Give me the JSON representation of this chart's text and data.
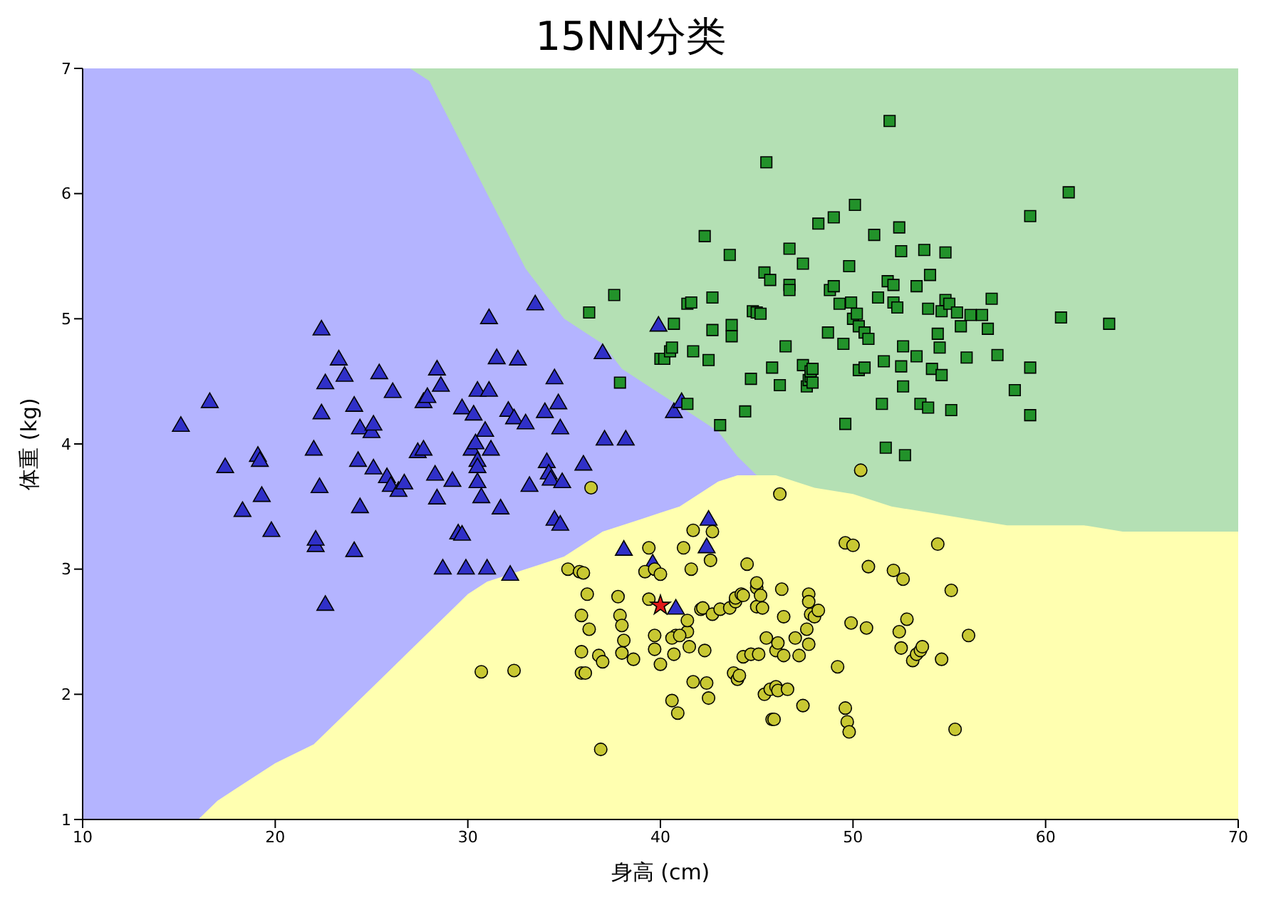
{
  "chart_data": {
    "type": "scatter",
    "title": "15NN分类",
    "xlabel": "身高 (cm)",
    "ylabel": "体重 (kg)",
    "xlim": [
      10,
      70
    ],
    "ylim": [
      1,
      7
    ],
    "xticks": [
      10,
      20,
      30,
      40,
      50,
      60,
      70
    ],
    "yticks": [
      1,
      2,
      3,
      4,
      5,
      6,
      7
    ],
    "x": [
      10,
      12,
      14,
      16,
      17,
      18,
      19,
      20,
      22,
      24,
      26,
      27,
      28,
      29,
      30,
      31,
      32,
      33,
      34,
      35,
      36,
      37,
      38,
      39,
      40,
      41,
      42,
      43,
      44,
      45,
      46,
      48,
      50,
      52,
      54,
      56,
      58,
      60,
      62,
      64,
      66,
      68,
      70
    ],
    "series": [
      {
        "type": "area",
        "color": "#b4e0b4",
        "values": [
          null,
          null,
          null,
          null,
          null,
          null,
          null,
          null,
          null,
          null,
          null,
          7,
          7,
          7,
          7,
          7,
          7,
          7,
          7,
          7,
          7,
          7,
          7,
          7,
          7,
          7,
          7,
          7,
          7,
          7,
          7,
          7,
          7,
          7,
          7,
          7,
          7,
          7,
          7,
          7,
          7,
          7,
          7
        ]
      },
      {
        "type": "area",
        "color": "#b4b4ff",
        "values": [
          7,
          7,
          7,
          7,
          7,
          7,
          7,
          7,
          7,
          7,
          7,
          7,
          6.9,
          6.6,
          6.3,
          6.0,
          5.7,
          5.4,
          5.2,
          5.0,
          4.9,
          4.8,
          4.6,
          4.5,
          4.4,
          4.3,
          4.2,
          4.1,
          3.9,
          3.75,
          null,
          null,
          null,
          null,
          null,
          null,
          null,
          null,
          null,
          null,
          null,
          null,
          null
        ]
      },
      {
        "type": "area",
        "color": "#ffffb0",
        "values": [
          1,
          1,
          1,
          1,
          1.15,
          1.25,
          1.35,
          1.45,
          1.6,
          1.9,
          2.2,
          2.35,
          2.5,
          2.65,
          2.8,
          2.9,
          2.95,
          3.0,
          3.05,
          3.1,
          3.2,
          3.3,
          3.35,
          3.4,
          3.45,
          3.5,
          3.6,
          3.7,
          3.75,
          3.75,
          3.75,
          3.65,
          3.6,
          3.5,
          3.45,
          3.4,
          3.35,
          3.35,
          3.35,
          3.3,
          3.3,
          3.3,
          3.3
        ]
      },
      {
        "marker": "triangle",
        "color": "#3030c8",
        "x": [
          15.1,
          16.6,
          17.4,
          18.3,
          19.1,
          19.2,
          19.3,
          19.8,
          22.1,
          22.0,
          22.1,
          22.3,
          22.4,
          22.6,
          22.4,
          22.6,
          23.3,
          23.6,
          24.1,
          24.1,
          24.3,
          24.4,
          24.4,
          25.0,
          25.1,
          25.1,
          25.4,
          25.8,
          26.1,
          26.0,
          26.4,
          26.7,
          27.4,
          27.7,
          27.7,
          27.9,
          28.3,
          28.4,
          28.4,
          28.6,
          28.7,
          29.2,
          29.5,
          29.7,
          29.7,
          29.9,
          30.2,
          30.3,
          30.4,
          30.5,
          30.5,
          30.5,
          30.5,
          30.7,
          30.9,
          31.0,
          31.1,
          31.1,
          31.2,
          31.5,
          31.7,
          32.1,
          32.2,
          32.4,
          32.6,
          33.0,
          33.2,
          33.5,
          34.0,
          34.1,
          34.2,
          34.3,
          34.5,
          34.5,
          34.7,
          34.8,
          34.8,
          34.9,
          36.0,
          37.0,
          37.1,
          38.1,
          38.2,
          39.6,
          39.9,
          40.8,
          40.7,
          41.1,
          42.4,
          42.5
        ],
        "values": [
          4.14,
          4.33,
          3.81,
          3.46,
          3.9,
          3.86,
          3.58,
          3.3,
          3.18,
          3.95,
          3.23,
          3.65,
          4.91,
          4.48,
          4.24,
          2.71,
          4.67,
          4.54,
          4.3,
          3.14,
          3.86,
          3.49,
          4.12,
          4.09,
          4.15,
          3.8,
          4.56,
          3.73,
          4.41,
          3.66,
          3.62,
          3.68,
          3.93,
          3.95,
          4.33,
          4.37,
          3.75,
          3.56,
          4.59,
          4.46,
          3.0,
          3.7,
          3.28,
          4.28,
          3.27,
          3.0,
          3.95,
          4.23,
          4.0,
          4.42,
          3.86,
          3.81,
          3.69,
          3.57,
          4.1,
          3.0,
          4.42,
          5.0,
          3.95,
          4.68,
          3.48,
          4.26,
          2.95,
          4.2,
          4.67,
          4.16,
          3.66,
          5.11,
          4.25,
          3.85,
          3.76,
          3.71,
          4.52,
          3.39,
          4.32,
          3.35,
          4.12,
          3.69,
          3.83,
          4.72,
          4.03,
          3.15,
          4.03,
          3.04,
          4.94,
          2.68,
          4.25,
          4.33,
          3.17,
          3.39
        ]
      },
      {
        "marker": "square",
        "color": "#22922a",
        "x": [
          36.3,
          37.6,
          37.9,
          40.0,
          40.2,
          40.5,
          40.6,
          40.7,
          41.4,
          41.4,
          41.6,
          41.7,
          42.3,
          42.5,
          42.7,
          42.7,
          43.1,
          43.6,
          43.7,
          43.7,
          44.4,
          44.7,
          44.8,
          45.0,
          45.2,
          45.4,
          45.5,
          45.7,
          45.8,
          46.2,
          46.5,
          46.7,
          46.7,
          46.7,
          47.4,
          47.4,
          47.6,
          47.7,
          47.8,
          47.8,
          47.9,
          47.9,
          48.2,
          48.7,
          48.8,
          49.0,
          49.0,
          49.3,
          49.5,
          49.6,
          49.8,
          49.9,
          50.0,
          50.1,
          50.2,
          50.3,
          50.3,
          50.6,
          50.6,
          50.8,
          51.1,
          51.3,
          51.5,
          51.6,
          51.7,
          51.8,
          51.9,
          52.1,
          52.1,
          52.3,
          52.4,
          52.5,
          52.5,
          52.6,
          52.6,
          52.7,
          53.3,
          53.3,
          53.5,
          53.7,
          53.9,
          53.9,
          54.0,
          54.1,
          54.4,
          54.5,
          54.6,
          54.6,
          54.8,
          54.8,
          55.0,
          55.1,
          55.4,
          55.6,
          55.9,
          56.1,
          56.7,
          57.0,
          57.2,
          57.5,
          58.4,
          59.2,
          59.2,
          59.2,
          60.8,
          61.2,
          63.3
        ],
        "values": [
          5.05,
          5.19,
          4.49,
          4.68,
          4.68,
          4.74,
          4.77,
          4.96,
          4.32,
          5.12,
          5.13,
          4.74,
          5.66,
          4.67,
          5.17,
          4.91,
          4.15,
          5.51,
          4.86,
          4.95,
          4.26,
          4.52,
          5.06,
          5.05,
          5.04,
          5.37,
          6.25,
          5.31,
          4.61,
          4.47,
          4.78,
          5.56,
          5.27,
          5.23,
          5.44,
          4.63,
          4.46,
          4.51,
          4.54,
          4.58,
          4.6,
          4.49,
          5.76,
          4.89,
          5.23,
          5.81,
          5.26,
          5.12,
          4.8,
          4.16,
          5.42,
          5.13,
          5.0,
          5.91,
          5.04,
          4.94,
          4.59,
          4.61,
          4.89,
          4.84,
          5.67,
          5.17,
          4.32,
          4.66,
          3.97,
          5.3,
          6.58,
          5.13,
          5.27,
          5.09,
          5.73,
          5.54,
          4.62,
          4.46,
          4.78,
          3.91,
          4.7,
          5.26,
          4.32,
          5.55,
          4.29,
          5.08,
          5.35,
          4.6,
          4.88,
          4.77,
          4.55,
          5.06,
          5.15,
          5.53,
          5.12,
          4.27,
          5.05,
          4.94,
          4.69,
          5.03,
          5.03,
          4.92,
          5.16,
          4.71,
          4.43,
          5.82,
          4.61,
          4.23,
          5.01,
          6.01,
          4.96
        ]
      },
      {
        "marker": "circle",
        "color": "#c8c832",
        "x": [
          30.7,
          32.4,
          35.2,
          35.8,
          36.0,
          35.9,
          35.9,
          35.9,
          36.1,
          36.2,
          36.3,
          36.8,
          36.9,
          37.8,
          37.9,
          38.0,
          38.1,
          38.0,
          38.6,
          39.2,
          39.4,
          39.4,
          39.7,
          39.7,
          39.7,
          40.8,
          40.6,
          40.6,
          40.7,
          41.2,
          41.4,
          41.5,
          41.7,
          36.4,
          46.2,
          40.9,
          41.0,
          41.4,
          41.6,
          41.7,
          42.1,
          42.2,
          42.3,
          42.4,
          42.5,
          42.6,
          42.7,
          42.7,
          43.1,
          43.6,
          43.8,
          43.9,
          43.9,
          44.0,
          44.1,
          44.2,
          44.3,
          44.3,
          44.5,
          44.7,
          45.0,
          45.0,
          45.0,
          45.1,
          45.2,
          45.3,
          45.4,
          45.5,
          45.7,
          45.8,
          46.0,
          46.0,
          46.1,
          46.1,
          46.3,
          46.4,
          46.4,
          46.6,
          47.0,
          47.2,
          47.4,
          47.6,
          47.7,
          47.7,
          47.7,
          47.8,
          48.0,
          48.2,
          49.2,
          49.6,
          49.6,
          49.7,
          49.8,
          49.9,
          50.0,
          50.4,
          50.7,
          50.8,
          52.1,
          52.4,
          52.5,
          52.6,
          52.8,
          53.1,
          53.3,
          53.5,
          53.6,
          54.4,
          54.6,
          55.1,
          55.3,
          56.0,
          37.0,
          45.9,
          40.0,
          40.0
        ],
        "values": [
          2.18,
          2.19,
          3.0,
          2.98,
          2.97,
          2.63,
          2.34,
          2.17,
          2.17,
          2.8,
          2.52,
          2.31,
          1.56,
          2.78,
          2.63,
          2.55,
          2.43,
          2.33,
          2.28,
          2.98,
          2.76,
          3.17,
          2.47,
          2.36,
          3.0,
          2.47,
          1.95,
          2.45,
          2.32,
          3.17,
          2.5,
          2.38,
          3.31,
          3.65,
          3.6,
          1.85,
          2.47,
          2.59,
          3.0,
          2.1,
          2.68,
          2.69,
          2.35,
          2.09,
          1.97,
          3.07,
          2.64,
          3.3,
          2.68,
          2.69,
          2.17,
          2.74,
          2.77,
          2.12,
          2.15,
          2.8,
          2.79,
          2.3,
          3.04,
          2.32,
          2.7,
          2.85,
          2.89,
          2.32,
          2.79,
          2.69,
          2.0,
          2.45,
          2.04,
          1.8,
          2.35,
          2.06,
          2.41,
          2.03,
          2.84,
          2.62,
          2.31,
          2.04,
          2.45,
          2.31,
          1.91,
          2.52,
          2.8,
          2.4,
          2.74,
          2.64,
          2.62,
          2.67,
          2.22,
          1.89,
          3.21,
          1.78,
          1.7,
          2.57,
          3.19,
          3.79,
          2.53,
          3.02,
          2.99,
          2.5,
          2.37,
          2.92,
          2.6,
          2.27,
          2.32,
          2.35,
          2.38,
          3.2,
          2.28,
          2.83,
          1.72,
          2.47,
          2.26,
          1.8,
          2.24,
          2.96
        ]
      },
      {
        "marker": "star",
        "color": "#e01818",
        "x": [
          40.0
        ],
        "values": [
          2.71
        ]
      }
    ]
  }
}
